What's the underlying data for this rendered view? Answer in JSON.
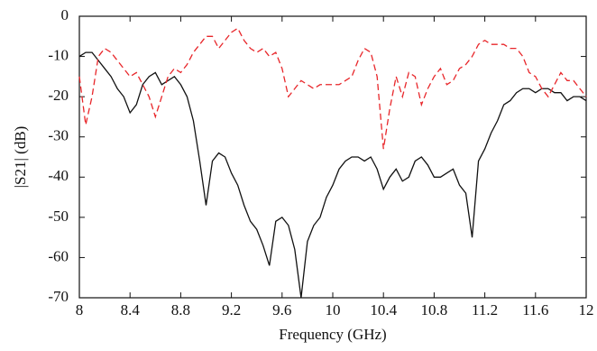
{
  "chart_data": {
    "type": "line",
    "x_label": "Frequency (GHz)",
    "y_label": "|S21| (dB)",
    "x": [
      8,
      8.05,
      8.1,
      8.15,
      8.2,
      8.25,
      8.3,
      8.35,
      8.4,
      8.45,
      8.5,
      8.55,
      8.6,
      8.65,
      8.7,
      8.75,
      8.8,
      8.85,
      8.9,
      8.95,
      9,
      9.05,
      9.1,
      9.15,
      9.2,
      9.25,
      9.3,
      9.35,
      9.4,
      9.45,
      9.5,
      9.55,
      9.6,
      9.65,
      9.7,
      9.75,
      9.8,
      9.85,
      9.9,
      9.95,
      10,
      10.05,
      10.1,
      10.15,
      10.2,
      10.25,
      10.3,
      10.35,
      10.4,
      10.45,
      10.5,
      10.55,
      10.6,
      10.65,
      10.7,
      10.75,
      10.8,
      10.85,
      10.9,
      10.95,
      11,
      11.05,
      11.1,
      11.15,
      11.2,
      11.25,
      11.3,
      11.35,
      11.4,
      11.45,
      11.5,
      11.55,
      11.6,
      11.65,
      11.7,
      11.75,
      11.8,
      11.85,
      11.9,
      11.95,
      12
    ],
    "series": [
      {
        "color": "#111111",
        "dash": false,
        "values": [
          -10,
          -9,
          -9,
          -11,
          -13,
          -15,
          -18,
          -20,
          -24,
          -22,
          -17,
          -15,
          -14,
          -17,
          -16,
          -15,
          -17,
          -20,
          -26,
          -36,
          -47,
          -36,
          -34,
          -35,
          -39,
          -42,
          -47,
          -51,
          -53,
          -57,
          -62,
          -51,
          -50,
          -52,
          -58,
          -70,
          -56,
          -52,
          -50,
          -45,
          -42,
          -38,
          -36,
          -35,
          -35,
          -36,
          -35,
          -38,
          -43,
          -40,
          -38,
          -41,
          -40,
          -36,
          -35,
          -37,
          -40,
          -40,
          -39,
          -38,
          -42,
          -44,
          -55,
          -36,
          -33,
          -29,
          -26,
          -22,
          -21,
          -19,
          -18,
          -18,
          -19,
          -18,
          -18,
          -19,
          -19,
          -21,
          -20,
          -20,
          -21
        ]
      },
      {
        "color": "#e8262a",
        "dash": true,
        "values": [
          -15,
          -27,
          -20,
          -10,
          -8,
          -9,
          -11,
          -13,
          -15,
          -14,
          -17,
          -20,
          -25,
          -20,
          -15,
          -13,
          -14,
          -12,
          -9,
          -7,
          -5,
          -5,
          -8,
          -6,
          -4,
          -3,
          -6,
          -8,
          -9,
          -8,
          -10,
          -9,
          -13,
          -20,
          -18,
          -16,
          -17,
          -18,
          -17,
          -17,
          -17,
          -17,
          -16,
          -15,
          -11,
          -8,
          -9,
          -15,
          -33,
          -23,
          -15,
          -20,
          -14,
          -15,
          -22,
          -18,
          -15,
          -13,
          -17,
          -16,
          -13,
          -12,
          -10,
          -7,
          -6,
          -7,
          -7,
          -7,
          -8,
          -8,
          -10,
          -14,
          -15,
          -18,
          -20,
          -17,
          -14,
          -16,
          -16,
          -18,
          -20
        ]
      }
    ],
    "xlim": [
      8,
      12
    ],
    "xticks": [
      8,
      8.4,
      8.8,
      9.2,
      9.6,
      10,
      10.4,
      10.8,
      11.2,
      11.6,
      12
    ],
    "ylim": [
      -70,
      0
    ],
    "yticks": [
      0,
      -10,
      -20,
      -30,
      -40,
      -50,
      -60,
      -70
    ],
    "grid": false
  }
}
